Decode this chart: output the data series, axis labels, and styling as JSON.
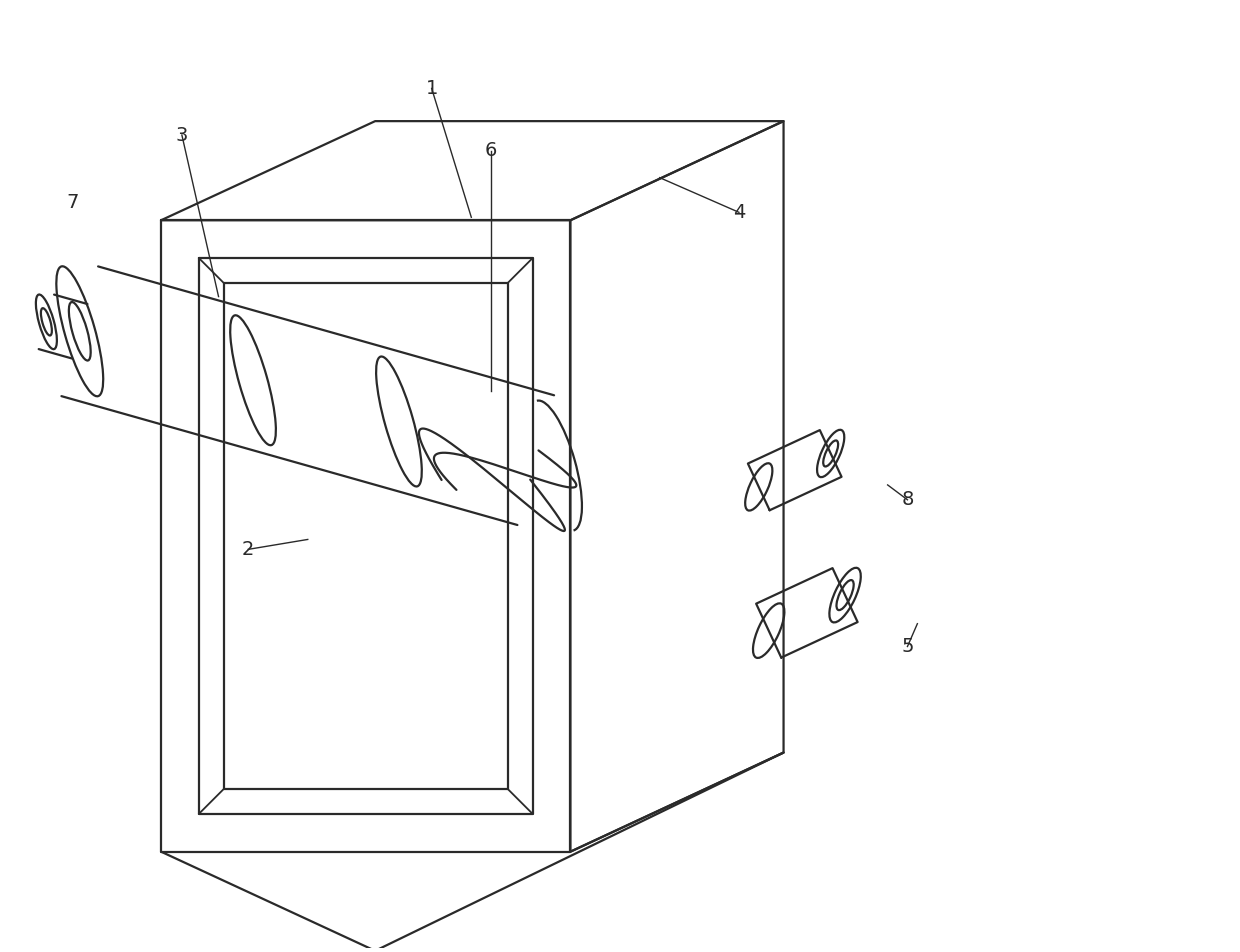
{
  "bg_color": "#ffffff",
  "line_color": "#2a2a2a",
  "line_width": 1.6,
  "fig_width": 12.4,
  "fig_height": 9.52,
  "label_fontsize": 14,
  "label_color": "#2a2a2a"
}
